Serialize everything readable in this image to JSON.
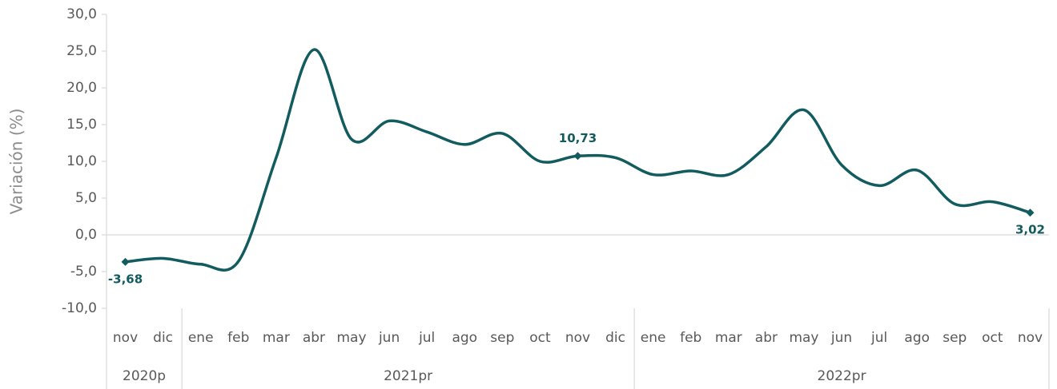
{
  "chart_data": {
    "type": "line",
    "y_label": "Variación (%)",
    "categories": [
      "nov",
      "dic",
      "ene",
      "feb",
      "mar",
      "abr",
      "may",
      "jun",
      "jul",
      "ago",
      "sep",
      "oct",
      "nov",
      "dic",
      "ene",
      "feb",
      "mar",
      "abr",
      "may",
      "jun",
      "jul",
      "ago",
      "sep",
      "oct",
      "nov"
    ],
    "category_groups": [
      {
        "label": "2020p",
        "span": 2
      },
      {
        "label": "2021pr",
        "span": 12
      },
      {
        "label": "2022pr",
        "span": 11
      }
    ],
    "series": [
      {
        "color": "#125b5e",
        "values": [
          -3.68,
          -3.2,
          -4.0,
          -3.6,
          10.5,
          25.2,
          13.0,
          15.5,
          14.0,
          12.3,
          13.8,
          10.0,
          10.73,
          10.5,
          8.2,
          8.7,
          8.2,
          12.0,
          17.0,
          9.5,
          6.7,
          8.8,
          4.2,
          4.5,
          3.02
        ],
        "value_labels": [
          "-3,68",
          null,
          null,
          null,
          null,
          null,
          null,
          null,
          null,
          null,
          null,
          null,
          "10,73",
          null,
          null,
          null,
          null,
          null,
          null,
          null,
          null,
          null,
          null,
          null,
          "3,02"
        ]
      }
    ],
    "ylim": [
      -10,
      30
    ],
    "yticks": [
      {
        "value": -10,
        "label": "-10,0"
      },
      {
        "value": -5,
        "label": "-5,0"
      },
      {
        "value": 0,
        "label": "0,0"
      },
      {
        "value": 5,
        "label": "5,0"
      },
      {
        "value": 10,
        "label": "10,0"
      },
      {
        "value": 15,
        "label": "15,0"
      },
      {
        "value": 20,
        "label": "20,0"
      },
      {
        "value": 25,
        "label": "25,0"
      },
      {
        "value": 30,
        "label": "30,0"
      }
    ],
    "grid": false
  }
}
